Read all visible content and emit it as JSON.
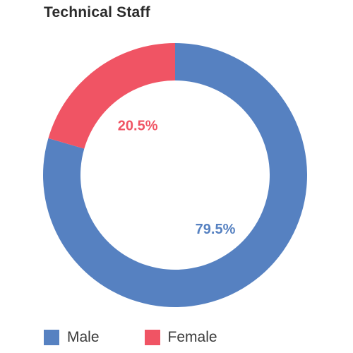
{
  "title": "Technical Staff",
  "chart_data": {
    "type": "pie",
    "title": "Technical Staff",
    "series": [
      {
        "name": "Male",
        "value": 79.5,
        "label": "79.5%",
        "color": "#5681c1"
      },
      {
        "name": "Female",
        "value": 20.5,
        "label": "20.5%",
        "color": "#f05464"
      }
    ],
    "donut": true,
    "legend_position": "bottom-left"
  }
}
